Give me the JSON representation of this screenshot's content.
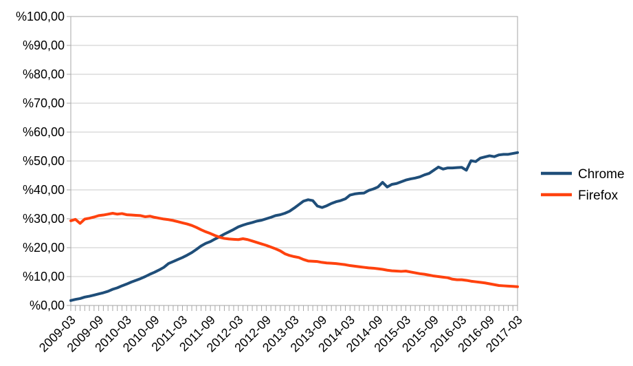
{
  "chart_data": {
    "type": "line",
    "title": "",
    "xlabel": "",
    "ylabel": "",
    "ylim": [
      0,
      100
    ],
    "y_step": 10,
    "grid": "horizontal",
    "legend_position": "right",
    "y_tick_labels": [
      "%0,00",
      "%10,00",
      "%20,00",
      "%30,00",
      "%40,00",
      "%50,00",
      "%60,00",
      "%70,00",
      "%80,00",
      "%90,00",
      "%100,00"
    ],
    "x_tick_labels": [
      "2009-03",
      "2009-09",
      "2010-03",
      "2010-09",
      "2011-03",
      "2011-09",
      "2012-03",
      "2012-09",
      "2013-03",
      "2013-09",
      "2014-03",
      "2014-09",
      "2015-03",
      "2015-09",
      "2016-03",
      "2016-09",
      "2017-03"
    ],
    "months": [
      "2009-03",
      "2009-04",
      "2009-05",
      "2009-06",
      "2009-07",
      "2009-08",
      "2009-09",
      "2009-10",
      "2009-11",
      "2009-12",
      "2010-01",
      "2010-02",
      "2010-03",
      "2010-04",
      "2010-05",
      "2010-06",
      "2010-07",
      "2010-08",
      "2010-09",
      "2010-10",
      "2010-11",
      "2010-12",
      "2011-01",
      "2011-02",
      "2011-03",
      "2011-04",
      "2011-05",
      "2011-06",
      "2011-07",
      "2011-08",
      "2011-09",
      "2011-10",
      "2011-11",
      "2011-12",
      "2012-01",
      "2012-02",
      "2012-03",
      "2012-04",
      "2012-05",
      "2012-06",
      "2012-07",
      "2012-08",
      "2012-09",
      "2012-10",
      "2012-11",
      "2012-12",
      "2013-01",
      "2013-02",
      "2013-03",
      "2013-04",
      "2013-05",
      "2013-06",
      "2013-07",
      "2013-08",
      "2013-09",
      "2013-10",
      "2013-11",
      "2013-12",
      "2014-01",
      "2014-02",
      "2014-03",
      "2014-04",
      "2014-05",
      "2014-06",
      "2014-07",
      "2014-08",
      "2014-09",
      "2014-10",
      "2014-11",
      "2014-12",
      "2015-01",
      "2015-02",
      "2015-03",
      "2015-04",
      "2015-05",
      "2015-06",
      "2015-07",
      "2015-08",
      "2015-09",
      "2015-10",
      "2015-11",
      "2015-12",
      "2016-01",
      "2016-02",
      "2016-03",
      "2016-04",
      "2016-05",
      "2016-06",
      "2016-07",
      "2016-08",
      "2016-09",
      "2016-10",
      "2016-11",
      "2016-12",
      "2017-01",
      "2017-02",
      "2017-03"
    ],
    "series": [
      {
        "name": "Chrome",
        "color": "#1f4e79",
        "values": [
          1.7,
          2.1,
          2.4,
          2.9,
          3.2,
          3.6,
          4.0,
          4.4,
          4.9,
          5.6,
          6.1,
          6.8,
          7.4,
          8.1,
          8.7,
          9.3,
          10.0,
          10.8,
          11.5,
          12.3,
          13.2,
          14.5,
          15.2,
          15.9,
          16.6,
          17.4,
          18.3,
          19.4,
          20.6,
          21.5,
          22.1,
          23.0,
          23.8,
          24.7,
          25.5,
          26.3,
          27.2,
          27.8,
          28.3,
          28.7,
          29.2,
          29.5,
          30.0,
          30.5,
          31.1,
          31.4,
          31.9,
          32.6,
          33.7,
          34.9,
          36.1,
          36.6,
          36.3,
          34.4,
          33.9,
          34.5,
          35.3,
          35.9,
          36.3,
          36.9,
          38.2,
          38.6,
          38.8,
          38.9,
          39.8,
          40.3,
          41.0,
          42.6,
          41.0,
          41.9,
          42.2,
          42.8,
          43.4,
          43.8,
          44.1,
          44.5,
          45.2,
          45.7,
          46.8,
          47.9,
          47.2,
          47.6,
          47.6,
          47.7,
          47.8,
          46.8,
          50.1,
          49.8,
          51.0,
          51.4,
          51.8,
          51.5,
          52.1,
          52.3,
          52.3,
          52.6,
          52.9
        ]
      },
      {
        "name": "Firefox",
        "color": "#ff420e",
        "values": [
          29.3,
          29.8,
          28.4,
          29.9,
          30.2,
          30.6,
          31.1,
          31.3,
          31.6,
          31.9,
          31.6,
          31.8,
          31.4,
          31.3,
          31.2,
          31.1,
          30.7,
          30.9,
          30.5,
          30.2,
          29.9,
          29.7,
          29.4,
          29.0,
          28.6,
          28.2,
          27.7,
          27.0,
          26.2,
          25.5,
          24.9,
          24.2,
          23.6,
          23.2,
          23.0,
          22.9,
          22.8,
          23.1,
          22.8,
          22.3,
          21.8,
          21.3,
          20.8,
          20.2,
          19.6,
          18.9,
          17.9,
          17.3,
          16.9,
          16.6,
          15.9,
          15.4,
          15.3,
          15.2,
          14.9,
          14.7,
          14.6,
          14.5,
          14.3,
          14.1,
          13.8,
          13.6,
          13.4,
          13.2,
          13.0,
          12.9,
          12.7,
          12.5,
          12.2,
          12.0,
          11.9,
          11.8,
          11.9,
          11.6,
          11.3,
          11.0,
          10.8,
          10.5,
          10.2,
          10.0,
          9.8,
          9.6,
          9.1,
          8.9,
          8.9,
          8.7,
          8.4,
          8.2,
          8.0,
          7.8,
          7.5,
          7.2,
          6.9,
          6.8,
          6.7,
          6.6,
          6.5
        ]
      }
    ],
    "style": {
      "background": "#ffffff",
      "gridline_color": "#c9c9c9",
      "axis_color": "#a6a6a6",
      "text_color": "#000000",
      "line_width": 4
    }
  }
}
